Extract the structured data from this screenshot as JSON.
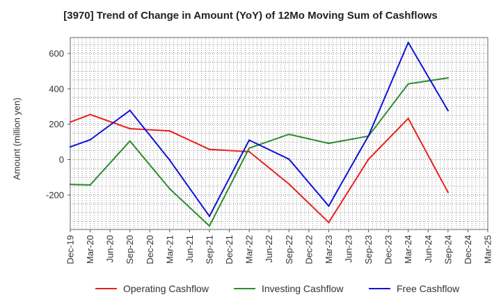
{
  "chart_data": {
    "type": "line",
    "title": "[3970]  Trend of Change in Amount (YoY) of 12Mo Moving Sum of Cashflows",
    "xlabel": "",
    "ylabel": "Amount (million yen)",
    "ylim": [
      -395,
      690
    ],
    "yticks": [
      -200,
      0,
      200,
      400,
      600
    ],
    "grid": true,
    "legend_position": "bottom",
    "categories": [
      "Dec-19",
      "Mar-20",
      "Jun-20",
      "Sep-20",
      "Dec-20",
      "Mar-21",
      "Jun-21",
      "Sep-21",
      "Dec-21",
      "Mar-22",
      "Jun-22",
      "Sep-22",
      "Dec-22",
      "Mar-23",
      "Jun-23",
      "Sep-23",
      "Dec-23",
      "Mar-24",
      "Jun-24",
      "Sep-24",
      "Dec-24",
      "Mar-25"
    ],
    "series": [
      {
        "name": "Operating Cashflow",
        "color": "#e8201e",
        "values": [
          212,
          255,
          null,
          175,
          null,
          162,
          null,
          58,
          null,
          45,
          null,
          -138,
          null,
          -355,
          null,
          2,
          null,
          233,
          null,
          -185,
          null,
          null
        ]
      },
      {
        "name": "Investing Cashflow",
        "color": "#2e8b2e",
        "values": [
          -140,
          -143,
          null,
          105,
          null,
          -165,
          null,
          -375,
          null,
          65,
          null,
          143,
          null,
          92,
          null,
          133,
          null,
          428,
          null,
          462,
          null,
          null
        ]
      },
      {
        "name": "Free Cashflow",
        "color": "#1010d8",
        "values": [
          72,
          112,
          null,
          278,
          null,
          -3,
          null,
          -320,
          null,
          110,
          null,
          3,
          null,
          -262,
          null,
          135,
          null,
          662,
          null,
          277,
          null,
          null
        ]
      }
    ]
  }
}
